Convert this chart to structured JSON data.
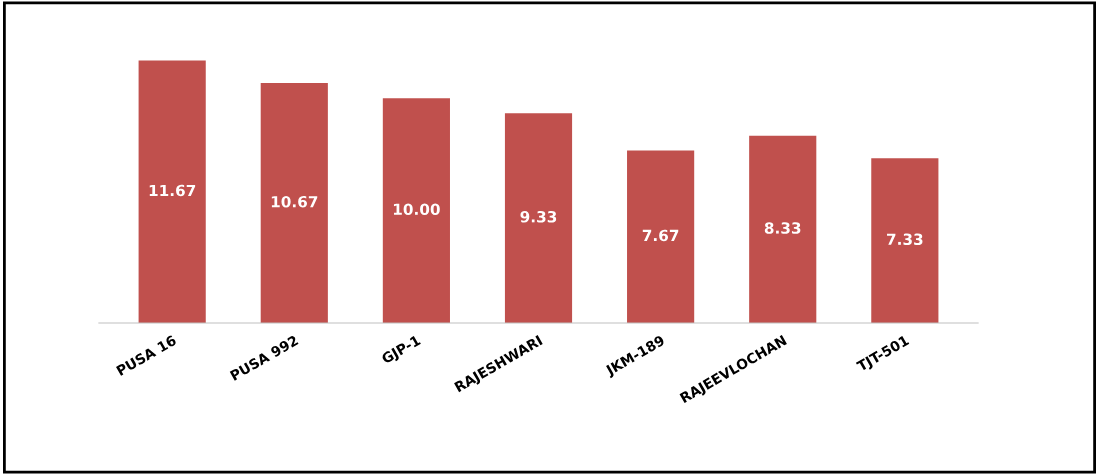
{
  "chart_data": {
    "type": "bar",
    "categories": [
      "PUSA 16",
      "PUSA 992",
      "GJP-1",
      "RAJESHWARI",
      "JKM-189",
      "RAJEEVLOCHAN",
      "TJT-501"
    ],
    "values": [
      11.67,
      10.67,
      10.0,
      9.33,
      7.67,
      8.33,
      7.33
    ],
    "value_labels": [
      "11.67",
      "10.67",
      "10.00",
      "9.33",
      "7.67",
      "8.33",
      "7.33"
    ],
    "color": "#c0504d",
    "grid": false,
    "legend": false
  }
}
